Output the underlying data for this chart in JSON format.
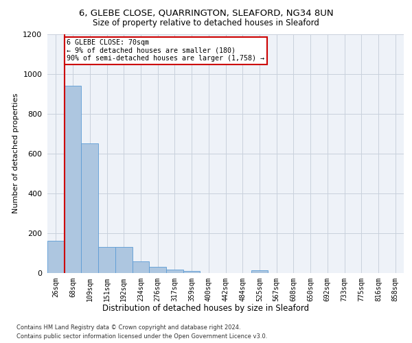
{
  "title_line1": "6, GLEBE CLOSE, QUARRINGTON, SLEAFORD, NG34 8UN",
  "title_line2": "Size of property relative to detached houses in Sleaford",
  "xlabel": "Distribution of detached houses by size in Sleaford",
  "ylabel": "Number of detached properties",
  "bin_labels": [
    "26sqm",
    "68sqm",
    "109sqm",
    "151sqm",
    "192sqm",
    "234sqm",
    "276sqm",
    "317sqm",
    "359sqm",
    "400sqm",
    "442sqm",
    "484sqm",
    "525sqm",
    "567sqm",
    "608sqm",
    "650sqm",
    "692sqm",
    "733sqm",
    "775sqm",
    "816sqm",
    "858sqm"
  ],
  "bar_heights": [
    160,
    940,
    650,
    130,
    130,
    57,
    30,
    14,
    10,
    0,
    0,
    0,
    12,
    0,
    0,
    0,
    0,
    0,
    0,
    0,
    0
  ],
  "bar_color": "#adc6e0",
  "bar_edge_color": "#5b9bd5",
  "ylim": [
    0,
    1200
  ],
  "yticks": [
    0,
    200,
    400,
    600,
    800,
    1000,
    1200
  ],
  "property_bin_index": 1,
  "annotation_title": "6 GLEBE CLOSE: 70sqm",
  "annotation_line2": "← 9% of detached houses are smaller (180)",
  "annotation_line3": "90% of semi-detached houses are larger (1,758) →",
  "annotation_box_color": "#ffffff",
  "annotation_border_color": "#cc0000",
  "vline_color": "#cc0000",
  "footer_line1": "Contains HM Land Registry data © Crown copyright and database right 2024.",
  "footer_line2": "Contains public sector information licensed under the Open Government Licence v3.0.",
  "plot_bg_color": "#eef2f8",
  "grid_color": "#c8d0dc"
}
